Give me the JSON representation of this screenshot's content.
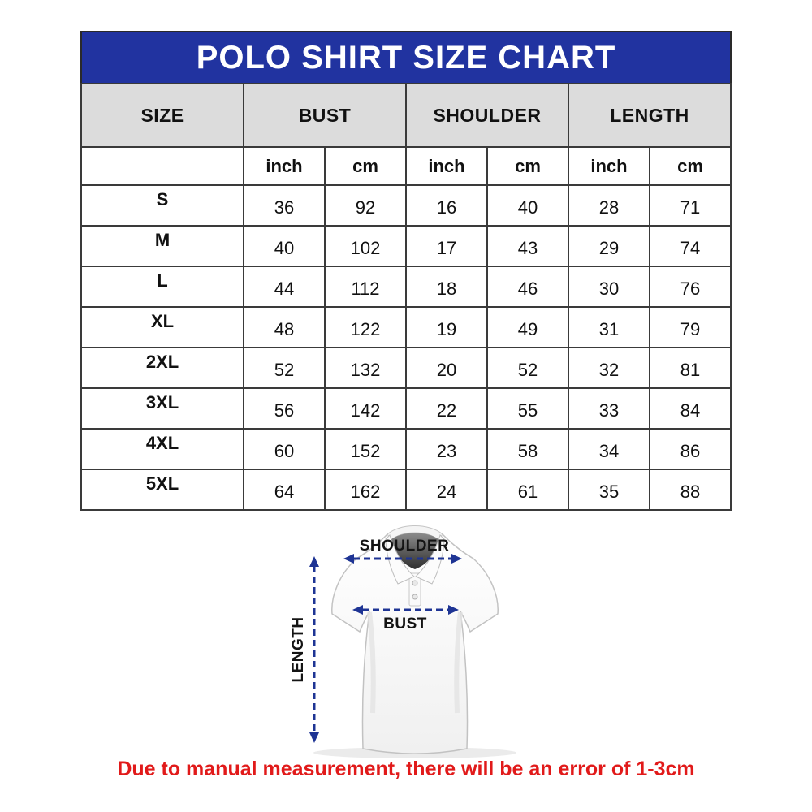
{
  "title": "POLO SHIRT SIZE CHART",
  "table": {
    "groups": [
      {
        "label": "SIZE",
        "span": 1
      },
      {
        "label": "BUST",
        "span": 2
      },
      {
        "label": "SHOULDER",
        "span": 2
      },
      {
        "label": "LENGTH",
        "span": 2
      }
    ],
    "unit_headers": [
      "inch",
      "cm",
      "inch",
      "cm",
      "inch",
      "cm"
    ],
    "rows": [
      {
        "size": "S",
        "values": [
          36,
          92,
          16,
          40,
          28,
          71
        ]
      },
      {
        "size": "M",
        "values": [
          40,
          102,
          17,
          43,
          29,
          74
        ]
      },
      {
        "size": "L",
        "values": [
          44,
          112,
          18,
          46,
          30,
          76
        ]
      },
      {
        "size": "XL",
        "values": [
          48,
          122,
          19,
          49,
          31,
          79
        ]
      },
      {
        "size": "2XL",
        "values": [
          52,
          132,
          20,
          52,
          32,
          81
        ]
      },
      {
        "size": "3XL",
        "values": [
          56,
          142,
          22,
          55,
          33,
          84
        ]
      },
      {
        "size": "4XL",
        "values": [
          60,
          152,
          23,
          58,
          34,
          86
        ]
      },
      {
        "size": "5XL",
        "values": [
          64,
          162,
          24,
          61,
          35,
          88
        ]
      }
    ]
  },
  "diagram": {
    "shoulder_label": "SHOULDER",
    "bust_label": "BUST",
    "length_label": "LENGTH"
  },
  "footer_note": "Due to manual measurement, there will be an error of 1-3cm",
  "colors": {
    "title_bg": "#2133a0",
    "title_text": "#ffffff",
    "group_header_bg": "#dcdcdc",
    "table_border": "#3a3a3a",
    "arrow": "#1e3494",
    "note_text": "#e11a1a"
  }
}
